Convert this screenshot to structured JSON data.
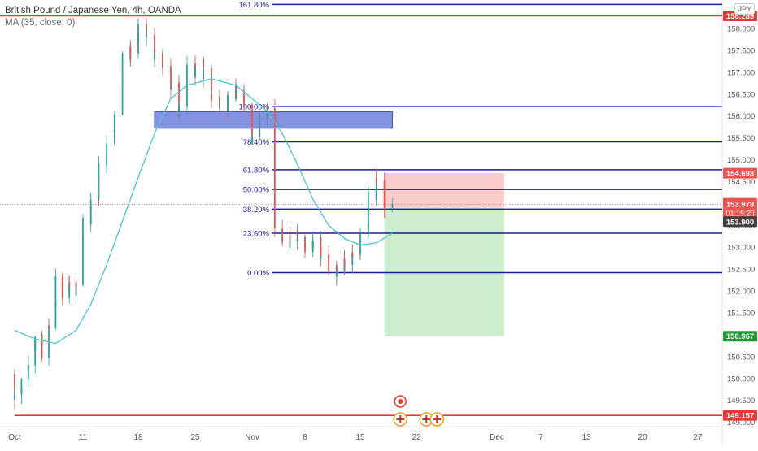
{
  "symbol_title": "British Pound / Japanese Yen, 4h, OANDA",
  "indicator_label": "MA (35, close, 0)",
  "currency": "JPY",
  "chart_data": {
    "type": "candlestick",
    "x_tick_labels": [
      "Oct",
      "11",
      "18",
      "25",
      "Nov",
      "8",
      "15",
      "22",
      "Dec",
      "7",
      "13",
      "20",
      "27"
    ],
    "y_tick_labels": [
      "158.000",
      "157.500",
      "157.000",
      "156.500",
      "156.000",
      "155.500",
      "155.000",
      "154.500",
      "154.000",
      "153.500",
      "153.000",
      "152.500",
      "152.000",
      "151.500",
      "151.000",
      "150.500",
      "150.000",
      "149.500",
      "149.000"
    ],
    "ylim": [
      148.9,
      158.65
    ],
    "price_labels": {
      "resistance": "158.289",
      "stop": "154.693",
      "current": "153.978",
      "countdown": "01:15:20",
      "entry": "153.900",
      "target": "150.967",
      "support": "149.157"
    },
    "horizontal_lines": {
      "resistance": 158.289,
      "support": 149.157,
      "entry": 153.9,
      "current": 153.978
    },
    "fibonacci": {
      "levels": [
        {
          "label": "161.80%",
          "value": 158.55
        },
        {
          "label": "100.00%",
          "value": 156.22
        },
        {
          "label": "78.40%",
          "value": 155.41
        },
        {
          "label": "61.80%",
          "value": 154.77
        },
        {
          "label": "50.00%",
          "value": 154.32
        },
        {
          "label": "38.20%",
          "value": 153.87
        },
        {
          "label": "23.60%",
          "value": 153.32
        },
        {
          "label": "0.00%",
          "value": 152.42
        }
      ],
      "start_date": "2021-11-01"
    },
    "supply_zone": {
      "top": 156.1,
      "bottom": 155.72,
      "start_date": "2021-10-20",
      "end_date": "2021-11-19"
    },
    "position": {
      "entry": 153.9,
      "stop": 154.693,
      "target": 150.967,
      "start_date": "2021-11-18",
      "end_date": "2021-12-02"
    },
    "price_path": [
      [
        "2021-10-01",
        150.1
      ],
      [
        "2021-10-02",
        149.5
      ],
      [
        "2021-10-04",
        150.4
      ],
      [
        "2021-10-05",
        150.9
      ],
      [
        "2021-10-06",
        150.6
      ],
      [
        "2021-10-07",
        151.3
      ],
      [
        "2021-10-08",
        152.2
      ],
      [
        "2021-10-09",
        152.0
      ],
      [
        "2021-10-11",
        152.1
      ],
      [
        "2021-10-12",
        153.6
      ],
      [
        "2021-10-13",
        154.1
      ],
      [
        "2021-10-14",
        154.8
      ],
      [
        "2021-10-15",
        155.3
      ],
      [
        "2021-10-16",
        156.0
      ],
      [
        "2021-10-17",
        157.3
      ],
      [
        "2021-10-18",
        157.6
      ],
      [
        "2021-10-19",
        158.0
      ],
      [
        "2021-10-20",
        157.8
      ],
      [
        "2021-10-21",
        157.3
      ],
      [
        "2021-10-22",
        157.1
      ],
      [
        "2021-10-23",
        156.7
      ],
      [
        "2021-10-24",
        156.2
      ],
      [
        "2021-10-25",
        157.0
      ],
      [
        "2021-10-26",
        157.3
      ],
      [
        "2021-10-27",
        156.9
      ],
      [
        "2021-10-28",
        156.4
      ],
      [
        "2021-10-29",
        156.2
      ],
      [
        "2021-10-30",
        156.5
      ],
      [
        "2021-10-31",
        156.6
      ],
      [
        "2021-11-01",
        156.3
      ],
      [
        "2021-11-02",
        155.4
      ],
      [
        "2021-11-03",
        155.9
      ],
      [
        "2021-11-04",
        156.1
      ],
      [
        "2021-11-05",
        153.6
      ],
      [
        "2021-11-06",
        153.1
      ],
      [
        "2021-11-08",
        153.2
      ],
      [
        "2021-11-09",
        153.0
      ],
      [
        "2021-11-10",
        153.1
      ],
      [
        "2021-11-11",
        152.8
      ],
      [
        "2021-11-12",
        152.6
      ],
      [
        "2021-11-13",
        152.5
      ],
      [
        "2021-11-14",
        152.7
      ],
      [
        "2021-11-15",
        152.9
      ],
      [
        "2021-11-16",
        153.3
      ],
      [
        "2021-11-17",
        154.1
      ],
      [
        "2021-11-18",
        154.5
      ],
      [
        "2021-11-19",
        153.98
      ]
    ],
    "ma_path": [
      [
        "2021-10-01",
        151.1
      ],
      [
        "2021-10-04",
        150.9
      ],
      [
        "2021-10-07",
        150.8
      ],
      [
        "2021-10-10",
        151.1
      ],
      [
        "2021-10-12",
        151.7
      ],
      [
        "2021-10-14",
        152.6
      ],
      [
        "2021-10-16",
        153.6
      ],
      [
        "2021-10-18",
        154.6
      ],
      [
        "2021-10-20",
        155.6
      ],
      [
        "2021-10-22",
        156.4
      ],
      [
        "2021-10-24",
        156.7
      ],
      [
        "2021-10-27",
        156.85
      ],
      [
        "2021-10-30",
        156.7
      ],
      [
        "2021-11-01",
        156.4
      ],
      [
        "2021-11-03",
        156.1
      ],
      [
        "2021-11-05",
        155.6
      ],
      [
        "2021-11-07",
        154.9
      ],
      [
        "2021-11-09",
        154.1
      ],
      [
        "2021-11-11",
        153.5
      ],
      [
        "2021-11-13",
        153.2
      ],
      [
        "2021-11-15",
        153.05
      ],
      [
        "2021-11-17",
        153.1
      ],
      [
        "2021-11-19",
        153.32
      ]
    ],
    "x_start": "2021-10-01",
    "x_end": "2022-01-01",
    "colors": {
      "up": "#26a69a",
      "down": "#ef5350",
      "ma": "#4fc3d7",
      "fib": "#1a1aa6",
      "horizontal": "#e53935",
      "zone": "#5b6fd6",
      "stop_zone": "#f8c7c7",
      "target_zone": "#c8ebc9",
      "entry_label": "#3f3f3f",
      "target_label": "#1e9e33",
      "current_label": "#ef5350"
    }
  }
}
